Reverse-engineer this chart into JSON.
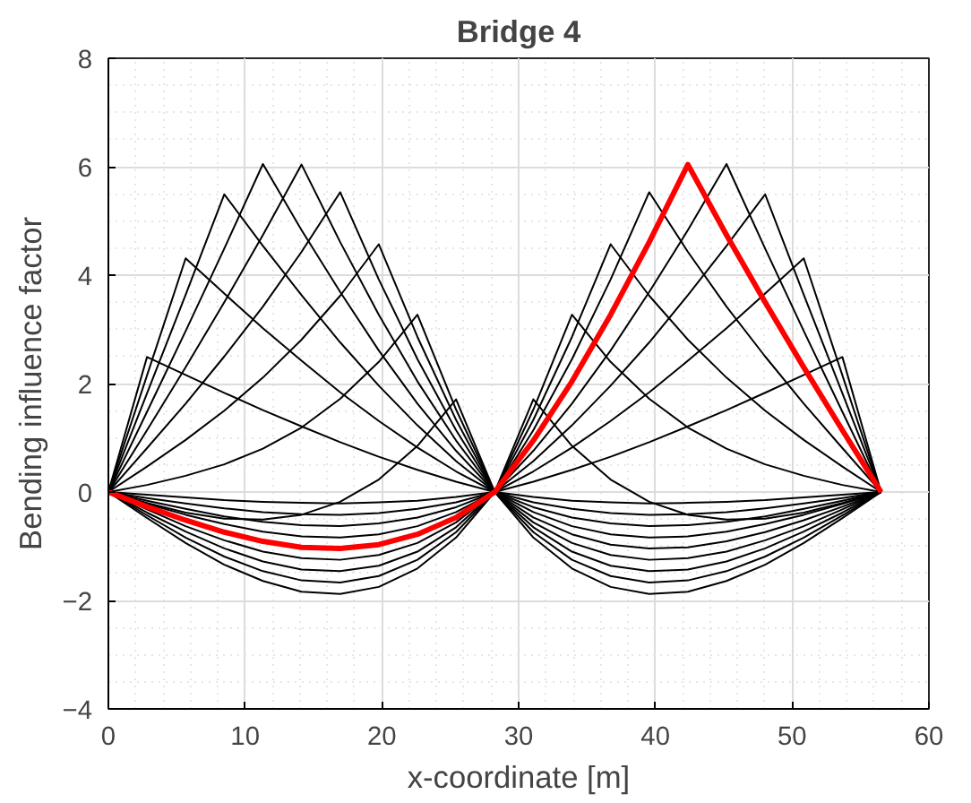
{
  "chart_data": {
    "type": "line",
    "title": "Bridge 4",
    "xlabel": "x-coordinate [m]",
    "ylabel": "Bending influence factor",
    "x": [
      0,
      2.825,
      5.65,
      8.475,
      11.3,
      14.125,
      16.95,
      19.775,
      22.6,
      25.425,
      28.25,
      31.075,
      33.9,
      36.725,
      39.55,
      42.375,
      45.2,
      48.025,
      50.85,
      53.675,
      56.5
    ],
    "xlim": [
      0,
      60
    ],
    "xticks": [
      0,
      10,
      20,
      30,
      40,
      50,
      60
    ],
    "ylim": [
      -4,
      8
    ],
    "yticks": [
      -4,
      -2,
      0,
      2,
      4,
      6,
      8
    ],
    "grid": true,
    "line_style": "solid",
    "marker": "none",
    "series": [
      {
        "color": "#000000",
        "values": [
          0,
          2.49,
          2.16,
          1.83,
          1.51,
          1.21,
          0.92,
          0.65,
          0.41,
          0.19,
          0,
          -0.09,
          -0.16,
          -0.19,
          -0.21,
          -0.2,
          -0.18,
          -0.15,
          -0.1,
          -0.05,
          0
        ]
      },
      {
        "color": "#000000",
        "values": [
          0,
          2.15,
          4.31,
          3.66,
          3.02,
          2.42,
          1.84,
          1.31,
          0.82,
          0.38,
          0,
          -0.19,
          -0.31,
          -0.39,
          -0.42,
          -0.41,
          -0.37,
          -0.3,
          -0.21,
          -0.11,
          0
        ]
      },
      {
        "color": "#000000",
        "values": [
          0,
          1.82,
          3.64,
          5.49,
          4.54,
          3.63,
          2.76,
          1.96,
          1.23,
          0.57,
          0,
          -0.28,
          -0.47,
          -0.58,
          -0.63,
          -0.61,
          -0.55,
          -0.45,
          -0.31,
          -0.16,
          0
        ]
      },
      {
        "color": "#000000",
        "values": [
          0,
          1.48,
          2.97,
          4.49,
          6.05,
          4.83,
          3.69,
          2.61,
          1.63,
          0.76,
          0,
          -0.37,
          -0.63,
          -0.78,
          -0.84,
          -0.82,
          -0.73,
          -0.59,
          -0.42,
          -0.22,
          0
        ]
      },
      {
        "color": "#000000",
        "values": [
          0,
          1.14,
          2.3,
          3.5,
          4.74,
          6.04,
          4.61,
          3.27,
          2.04,
          0.95,
          0,
          -0.47,
          -0.78,
          -0.97,
          -1.04,
          -1.02,
          -0.91,
          -0.74,
          -0.52,
          -0.27,
          0
        ]
      },
      {
        "color": "#000000",
        "values": [
          0,
          0.81,
          1.63,
          2.5,
          3.42,
          4.43,
          5.53,
          3.92,
          2.45,
          1.14,
          0,
          -0.56,
          -0.94,
          -1.16,
          -1.25,
          -1.22,
          -1.1,
          -0.89,
          -0.63,
          -0.32,
          0
        ]
      },
      {
        "color": "#000000",
        "values": [
          0,
          0.47,
          0.96,
          1.5,
          2.11,
          2.81,
          3.62,
          4.57,
          2.86,
          1.33,
          0,
          -0.65,
          -1.1,
          -1.36,
          -1.46,
          -1.43,
          -1.28,
          -1.04,
          -0.73,
          -0.38,
          0
        ]
      },
      {
        "color": "#000000",
        "values": [
          0,
          0.13,
          0.3,
          0.51,
          0.8,
          1.19,
          1.72,
          2.4,
          3.27,
          1.52,
          0,
          -0.74,
          -1.25,
          -1.55,
          -1.67,
          -1.63,
          -1.46,
          -1.19,
          -0.84,
          -0.43,
          0
        ]
      },
      {
        "color": "#000000",
        "values": [
          0,
          -0.2,
          -0.38,
          -0.49,
          -0.51,
          -0.42,
          -0.18,
          0.23,
          0.85,
          1.71,
          0,
          -0.84,
          -1.41,
          -1.75,
          -1.88,
          -1.84,
          -1.64,
          -1.34,
          -0.94,
          -0.48,
          0
        ]
      },
      {
        "color": "#000000",
        "values": [
          0,
          -0.48,
          -0.94,
          -1.34,
          -1.64,
          -1.84,
          -1.88,
          -1.75,
          -1.41,
          -0.84,
          0,
          1.71,
          0.85,
          0.23,
          -0.18,
          -0.42,
          -0.51,
          -0.49,
          -0.38,
          -0.2,
          0
        ]
      },
      {
        "color": "#000000",
        "values": [
          0,
          -0.43,
          -0.84,
          -1.19,
          -1.46,
          -1.63,
          -1.67,
          -1.55,
          -1.25,
          -0.74,
          0,
          1.52,
          3.27,
          2.4,
          1.72,
          1.19,
          0.8,
          0.51,
          0.3,
          0.13,
          0
        ]
      },
      {
        "color": "#000000",
        "values": [
          0,
          -0.38,
          -0.73,
          -1.04,
          -1.28,
          -1.43,
          -1.46,
          -1.36,
          -1.1,
          -0.65,
          0,
          1.33,
          2.86,
          4.57,
          3.62,
          2.81,
          2.11,
          1.5,
          0.96,
          0.47,
          0
        ]
      },
      {
        "color": "#000000",
        "values": [
          0,
          -0.32,
          -0.63,
          -0.89,
          -1.1,
          -1.22,
          -1.25,
          -1.16,
          -0.94,
          -0.56,
          0,
          1.14,
          2.45,
          3.92,
          5.53,
          4.43,
          3.42,
          2.5,
          1.63,
          0.81,
          0
        ]
      },
      {
        "color": "#000000",
        "values": [
          0,
          -0.22,
          -0.42,
          -0.59,
          -0.73,
          -0.82,
          -0.84,
          -0.78,
          -0.63,
          -0.37,
          0,
          0.76,
          1.63,
          2.61,
          3.69,
          4.83,
          6.05,
          4.49,
          2.97,
          1.48,
          0
        ]
      },
      {
        "color": "#000000",
        "values": [
          0,
          -0.16,
          -0.31,
          -0.45,
          -0.55,
          -0.61,
          -0.63,
          -0.58,
          -0.47,
          -0.28,
          0,
          0.57,
          1.23,
          1.96,
          2.76,
          3.63,
          4.54,
          5.49,
          3.64,
          1.82,
          0
        ]
      },
      {
        "color": "#000000",
        "values": [
          0,
          -0.11,
          -0.21,
          -0.3,
          -0.37,
          -0.41,
          -0.42,
          -0.39,
          -0.31,
          -0.19,
          0,
          0.38,
          0.82,
          1.31,
          1.84,
          2.42,
          3.02,
          3.66,
          4.31,
          2.15,
          0
        ]
      },
      {
        "color": "#000000",
        "values": [
          0,
          -0.05,
          -0.1,
          -0.15,
          -0.18,
          -0.2,
          -0.21,
          -0.19,
          -0.16,
          -0.09,
          0,
          0.19,
          0.41,
          0.65,
          0.92,
          1.21,
          1.51,
          1.83,
          2.16,
          2.49,
          0
        ]
      },
      {
        "color": "#ff0000",
        "values": [
          0,
          -0.27,
          -0.52,
          -0.74,
          -0.91,
          -1.02,
          -1.04,
          -0.97,
          -0.78,
          -0.47,
          0,
          0.95,
          2.04,
          3.27,
          4.61,
          6.04,
          4.74,
          3.5,
          2.3,
          1.14,
          0
        ]
      }
    ]
  }
}
